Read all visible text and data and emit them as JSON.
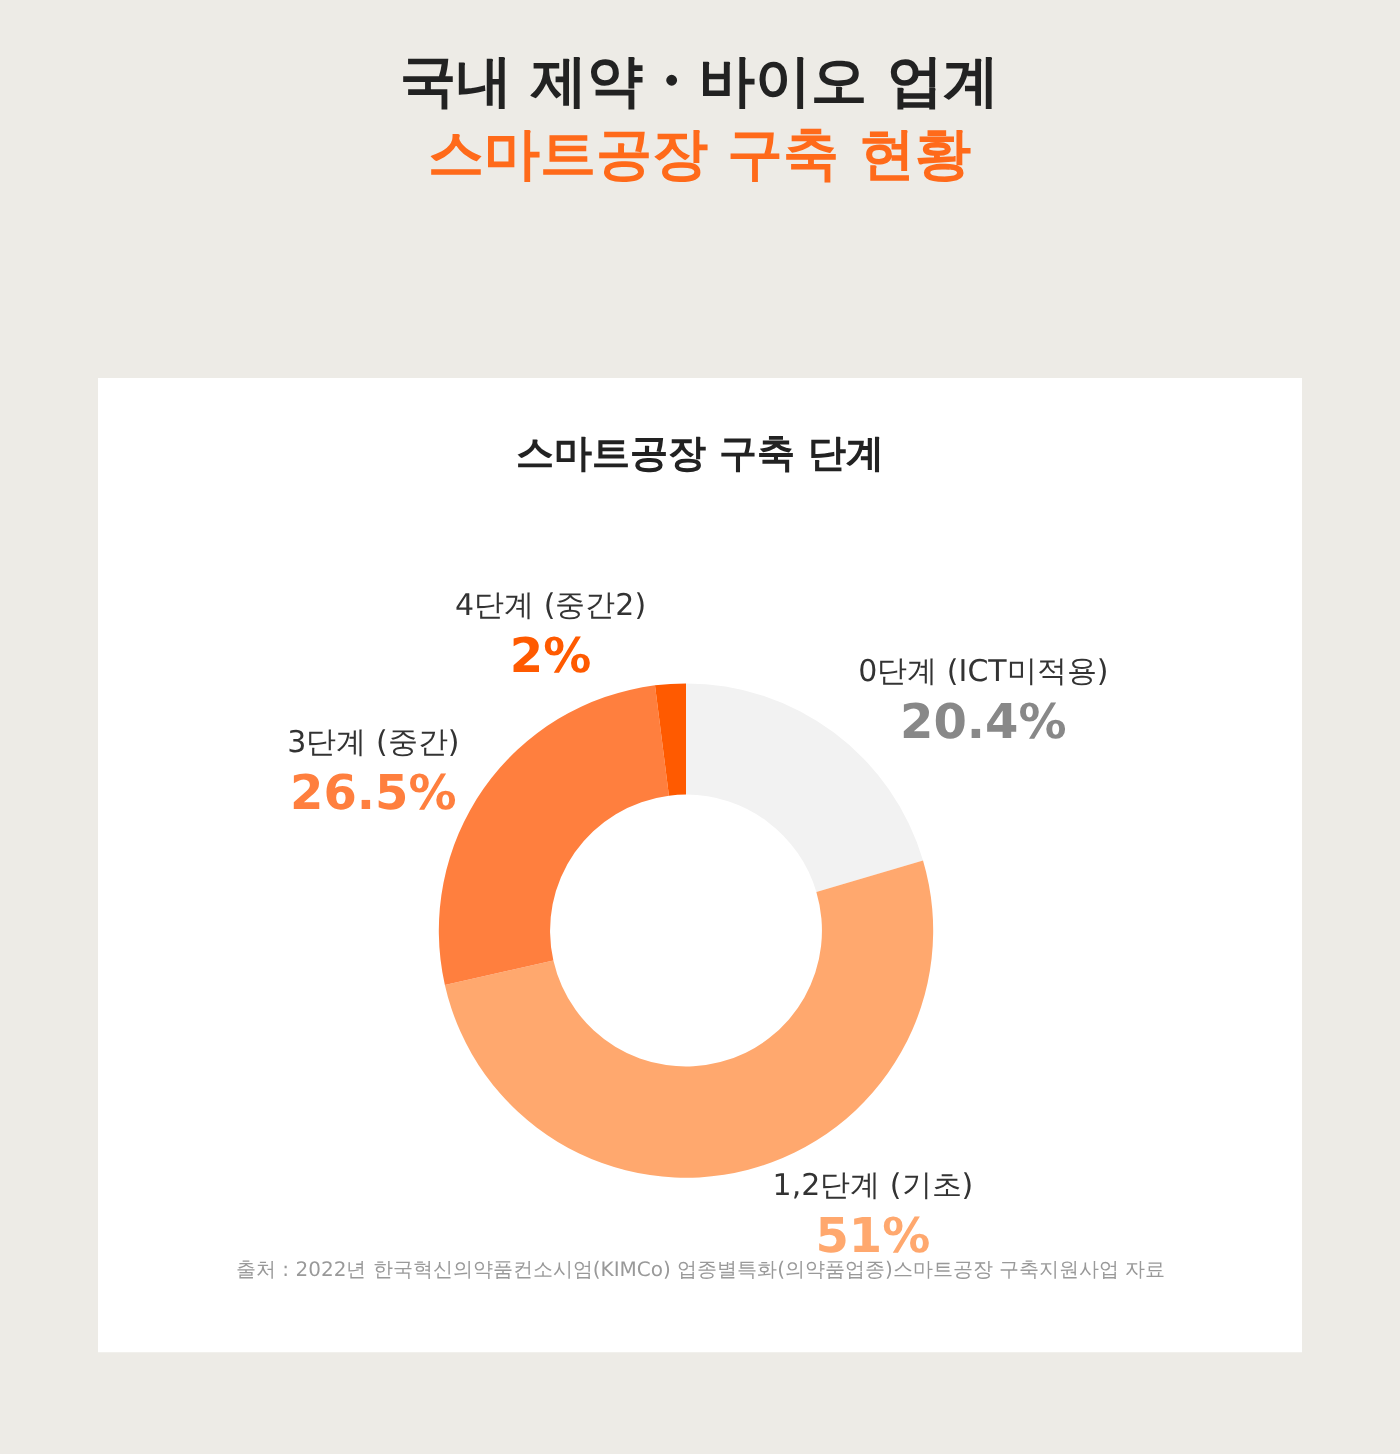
{
  "chart_data": {
    "type": "donut",
    "title": "국내 제약・바이오 업계\n스마트공장 구축 현황",
    "subtitle": "스마트공장 구축 단계",
    "categories": [
      "0단계 (ICT미적용)",
      "1,2단계 (기초)",
      "3단계 (중간)",
      "4단계 (중간2)"
    ],
    "values": [
      20.4,
      51,
      26.5,
      2
    ],
    "value_labels": [
      "20.4%",
      "51%",
      "26.5%",
      "2%"
    ],
    "colors": [
      "#f2f2f2",
      "#ffa86e",
      "#ff7f3e",
      "#ff5a00"
    ],
    "annotations": [
      "출처 : 2022년 한국혁신의약품컨소시엄(KIMCo) 업종별특화(의약품업종)스마트공장 구축지원사업 자료"
    ],
    "legend": false
  }
}
